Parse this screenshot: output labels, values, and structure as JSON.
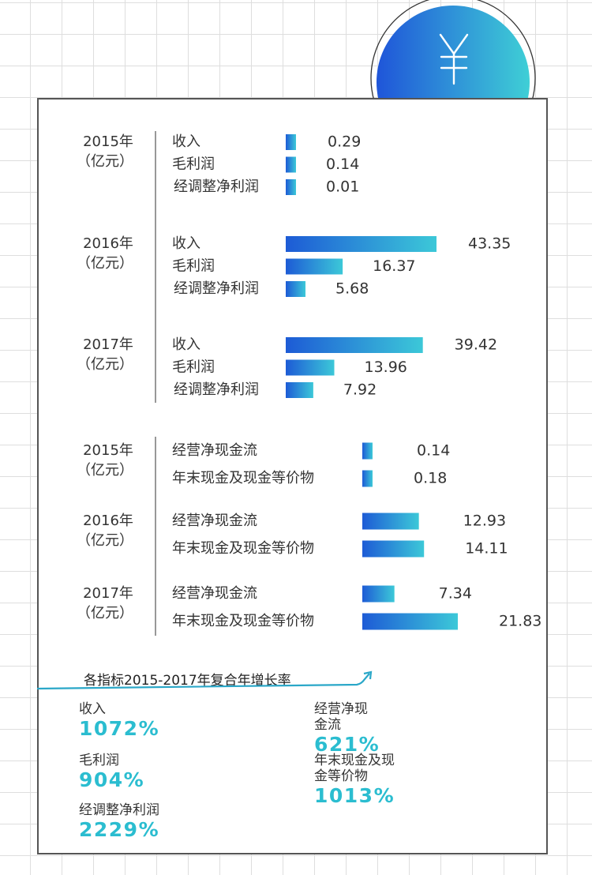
{
  "colors": {
    "bar_start": "#1d5bd6",
    "bar_end": "#3cc8d8",
    "accent": "#2bbdd0",
    "circle_start": "#1f55d9",
    "circle_end": "#3fcfd6"
  },
  "icon": {
    "name": "yuan-icon",
    "glyph": "¥"
  },
  "chart_data": [
    {
      "type": "bar",
      "orientation": "horizontal",
      "title": "",
      "groups": [
        {
          "label": "2015年",
          "unit": "（亿元）",
          "items": [
            {
              "name": "收入",
              "value": 0.29
            },
            {
              "name": "毛利润",
              "value": 0.14
            },
            {
              "name": "经调整净利润",
              "value": 0.01
            }
          ]
        },
        {
          "label": "2016年",
          "unit": "（亿元）",
          "items": [
            {
              "name": "收入",
              "value": 43.35
            },
            {
              "name": "毛利润",
              "value": 16.37
            },
            {
              "name": "经调整净利润",
              "value": 5.68
            }
          ]
        },
        {
          "label": "2017年",
          "unit": "（亿元）",
          "items": [
            {
              "name": "收入",
              "value": 39.42
            },
            {
              "name": "毛利润",
              "value": 13.96
            },
            {
              "name": "经调整净利润",
              "value": 7.92
            }
          ]
        }
      ]
    },
    {
      "type": "bar",
      "orientation": "horizontal",
      "title": "",
      "groups": [
        {
          "label": "2015年",
          "unit": "（亿元）",
          "items": [
            {
              "name": "经营净现金流",
              "value": 0.14
            },
            {
              "name": "年末现金及现金等价物",
              "value": 0.18
            }
          ]
        },
        {
          "label": "2016年",
          "unit": "（亿元）",
          "items": [
            {
              "name": "经营净现金流",
              "value": 12.93
            },
            {
              "name": "年末现金及现金等价物",
              "value": 14.11
            }
          ]
        },
        {
          "label": "2017年",
          "unit": "（亿元）",
          "items": [
            {
              "name": "经营净现金流",
              "value": 7.34
            },
            {
              "name": "年末现金及现金等价物",
              "value": 21.83
            }
          ]
        }
      ]
    }
  ],
  "growth": {
    "title": "各指标2015-2017年复合年增长率",
    "left": [
      {
        "label": "收入",
        "value": "1072%"
      },
      {
        "label": "毛利润",
        "value": "904%"
      },
      {
        "label": "经调整净利润",
        "value": "2229%"
      }
    ],
    "right": [
      {
        "label": "经营净现金流",
        "value": "621%"
      },
      {
        "label": "年末现金及现金等价物",
        "value": "1013%"
      }
    ]
  }
}
